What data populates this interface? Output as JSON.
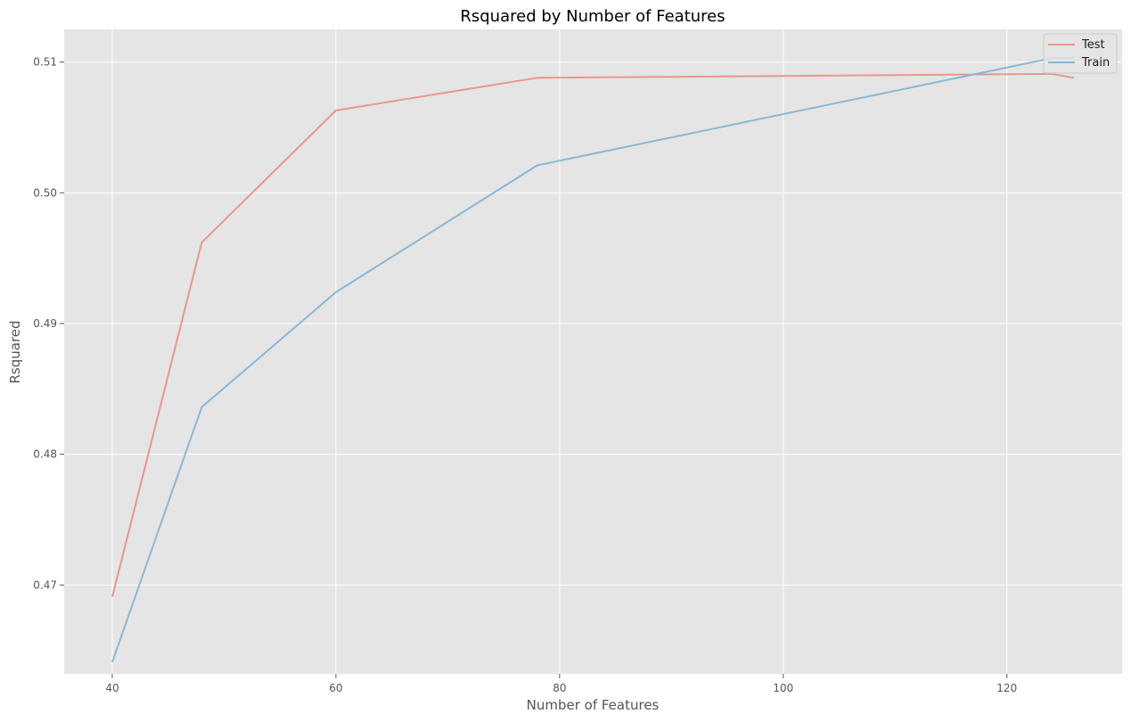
{
  "chart_data": {
    "type": "line",
    "title": "Rsquared by Number of Features",
    "xlabel": "Number of Features",
    "ylabel": "Rsquared",
    "xlim": [
      35.7,
      130.3
    ],
    "ylim": [
      0.4632,
      0.5125
    ],
    "xticks": [
      40,
      60,
      80,
      100,
      120
    ],
    "yticks": [
      0.47,
      0.48,
      0.49,
      0.5,
      0.51
    ],
    "ytick_labels": [
      "0.47",
      "0.48",
      "0.49",
      "0.50",
      "0.51"
    ],
    "grid": true,
    "legend_position": "top-right",
    "series": [
      {
        "name": "Test",
        "color": "#E8988A",
        "x": [
          40,
          48,
          60,
          78,
          124,
          126
        ],
        "y": [
          0.4691,
          0.4962,
          0.5063,
          0.5088,
          0.5091,
          0.5088
        ]
      },
      {
        "name": "Train",
        "color": "#8AB8D6",
        "x": [
          40,
          48,
          60,
          78,
          124,
          126
        ],
        "y": [
          0.4641,
          0.4836,
          0.4924,
          0.5021,
          0.5103,
          0.5103
        ]
      }
    ]
  },
  "colors": {
    "plot_background": "#E5E5E5",
    "grid": "#FFFFFF"
  }
}
